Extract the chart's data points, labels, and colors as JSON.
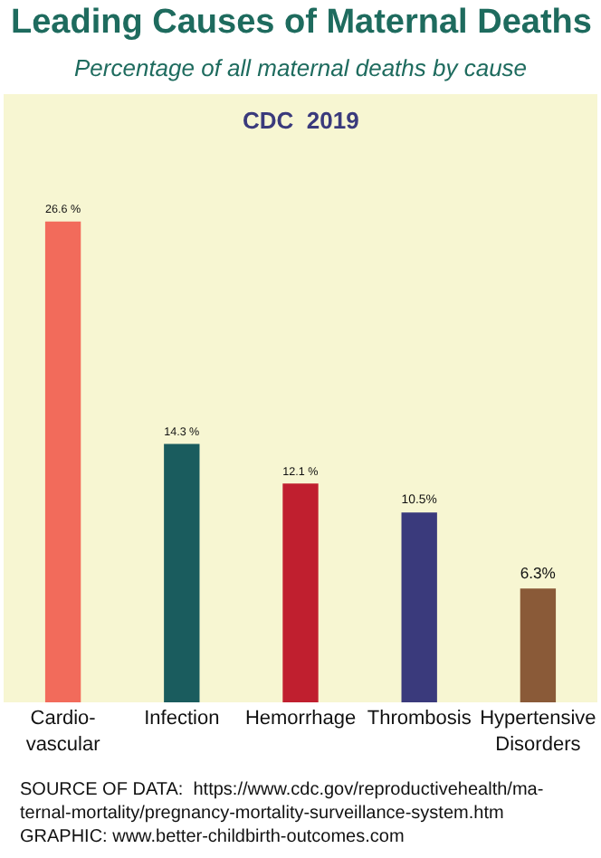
{
  "chart_data": {
    "type": "bar",
    "title": "Leading Causes of Maternal Deaths",
    "subtitle": "Percentage of all maternal deaths by cause",
    "categories": [
      "Cardio-\nvascular",
      "Infection",
      "Hemorrhage",
      "Thrombosis",
      "Hypertensive\nDisorders"
    ],
    "values": [
      26.6,
      14.3,
      12.1,
      10.5,
      6.3
    ],
    "colors": [
      "#f26b5b",
      "#1a5c5e",
      "#c01f2f",
      "#3a3a7c",
      "#8a5a38"
    ],
    "value_labels": [
      "26.6 %",
      "14.3 %",
      "12.1 %",
      "10.5%",
      "6.3%"
    ],
    "annotations": [
      "CDC  2019",
      "SOURCE OF DATA:  https://www.cdc.gov/reproductivehealth/ma-\nternal-mortality/pregnancy-mortality-surveillance-system.htm\nGRAPHIC: www.better-childbirth-outcomes.com"
    ],
    "grid": false,
    "legend": false
  }
}
